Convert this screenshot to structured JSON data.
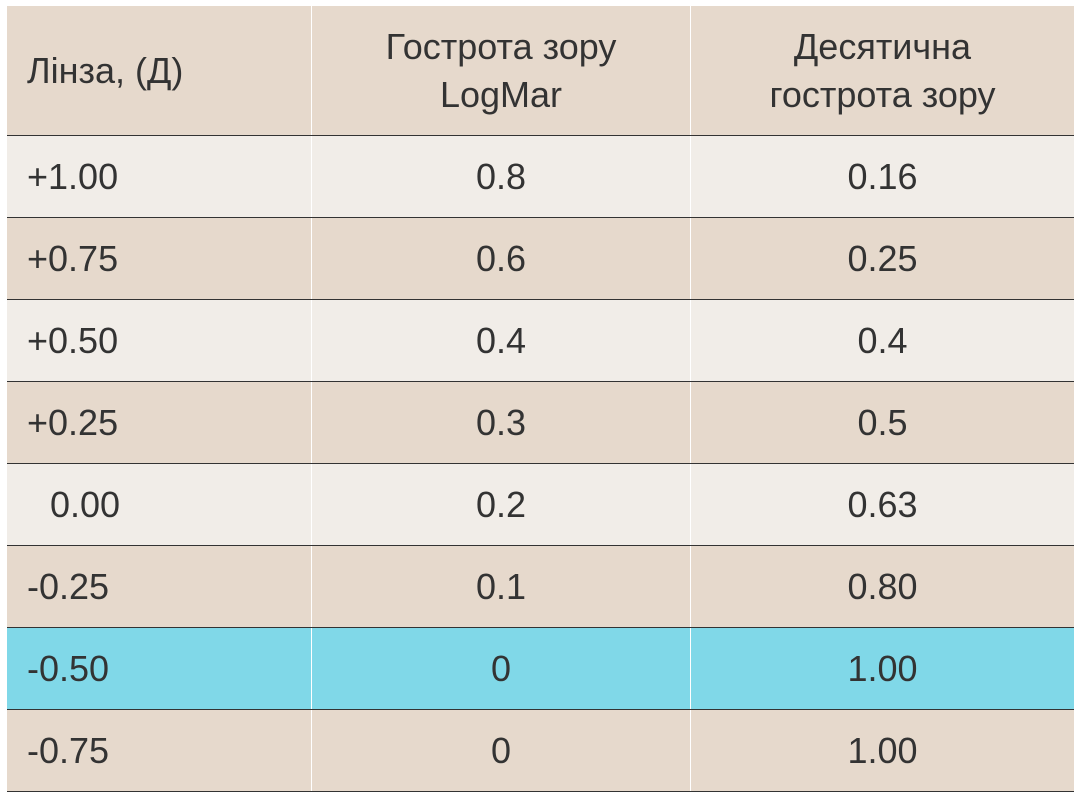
{
  "table": {
    "header": [
      "Лінза, (Д)",
      "Гострота зору LogMar",
      "Десятична гострота зору"
    ],
    "rows": [
      [
        "+1.00",
        "0.8",
        "0.16"
      ],
      [
        "+0.75",
        "0.6",
        "0.25"
      ],
      [
        "+0.50",
        "0.4",
        "0.4"
      ],
      [
        "+0.25",
        "0.3",
        "0.5"
      ],
      [
        "0.00",
        "0.2",
        "0.63"
      ],
      [
        "-0.25",
        "0.1",
        "0.80"
      ],
      [
        "-0.50",
        "0",
        "1.00"
      ],
      [
        "-0.75",
        "0",
        "1.00"
      ]
    ]
  }
}
